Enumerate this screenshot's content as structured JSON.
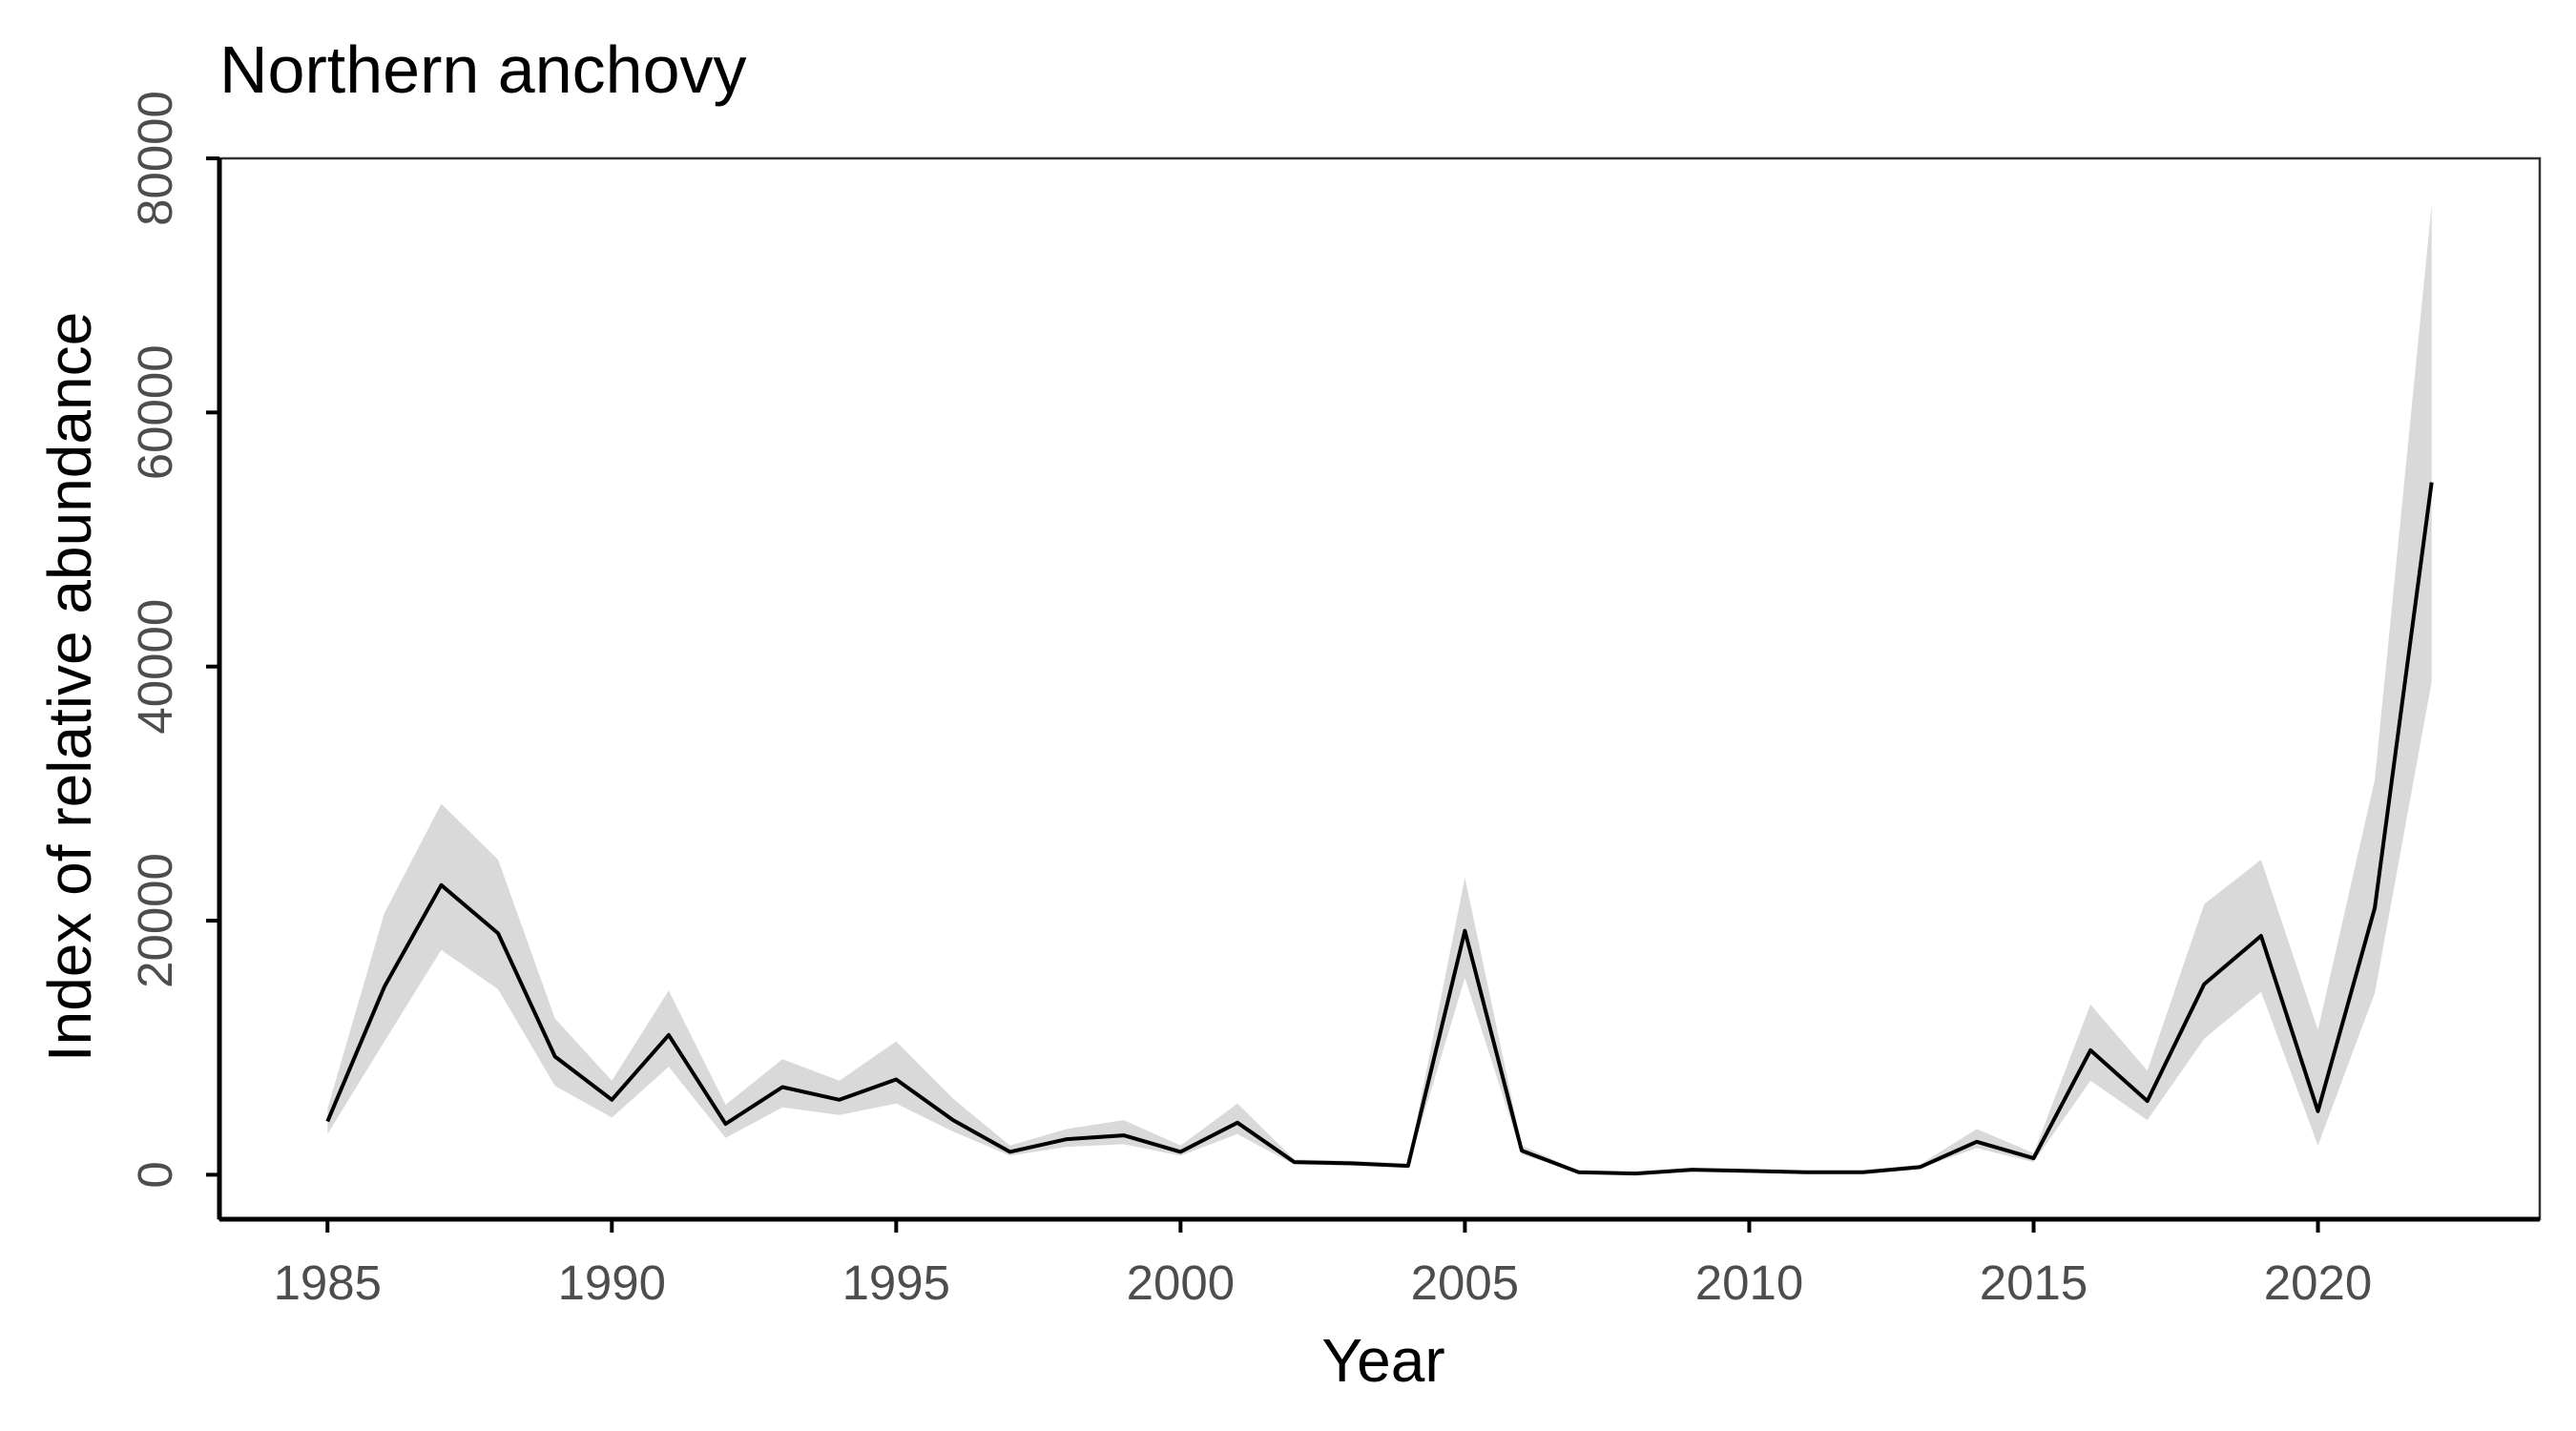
{
  "chart_data": {
    "type": "line",
    "title": "Northern anchovy",
    "xlabel": "Year",
    "ylabel": "Index of relative abundance",
    "xlim": [
      1983.1,
      2023.9
    ],
    "ylim": [
      -3500,
      80000
    ],
    "x_ticks": [
      1985,
      1990,
      1995,
      2000,
      2005,
      2010,
      2015,
      2020
    ],
    "y_ticks": [
      0,
      20000,
      40000,
      60000,
      80000
    ],
    "grid": false,
    "legend": "none",
    "series": [
      {
        "x": [
          1985,
          1986,
          1987,
          1988,
          1989,
          1990,
          1991,
          1992,
          1993,
          1994,
          1995,
          1996,
          1997,
          1998,
          1999,
          2000,
          2001,
          2002,
          2003,
          2004,
          2005,
          2006,
          2007,
          2008,
          2009,
          2010,
          2011,
          2012,
          2013,
          2014,
          2015,
          2016,
          2017,
          2018,
          2019,
          2020,
          2021,
          2022
        ],
        "y": [
          4200,
          14800,
          22800,
          19000,
          9300,
          5900,
          11000,
          4000,
          6900,
          5900,
          7500,
          4300,
          1800,
          2800,
          3100,
          1800,
          4100,
          1000,
          900,
          700,
          19200,
          1900,
          200,
          100,
          400,
          300,
          200,
          200,
          600,
          2600,
          1300,
          9800,
          5800,
          15000,
          18800,
          5000,
          21000,
          54500
        ],
        "lower": [
          3200,
          10500,
          17700,
          14600,
          7000,
          4500,
          8500,
          2900,
          5300,
          4700,
          5600,
          3400,
          1500,
          2200,
          2400,
          1500,
          3200,
          800,
          700,
          600,
          15500,
          1600,
          150,
          50,
          300,
          250,
          150,
          150,
          500,
          2100,
          1000,
          7400,
          4300,
          10700,
          14400,
          2300,
          14300,
          38800
        ],
        "upper": [
          5200,
          20600,
          29200,
          24800,
          12300,
          7400,
          14500,
          5500,
          9100,
          7400,
          10500,
          6000,
          2300,
          3600,
          4300,
          2300,
          5600,
          1200,
          1100,
          900,
          23400,
          2300,
          300,
          200,
          500,
          400,
          300,
          300,
          800,
          3600,
          1700,
          13400,
          8200,
          21300,
          24800,
          11400,
          31100,
          76300
        ]
      }
    ],
    "colors": {
      "line": "#000000",
      "ribbon": "#d9d9d9",
      "axis": "#000000",
      "tick_text": "#4d4d4d"
    }
  }
}
